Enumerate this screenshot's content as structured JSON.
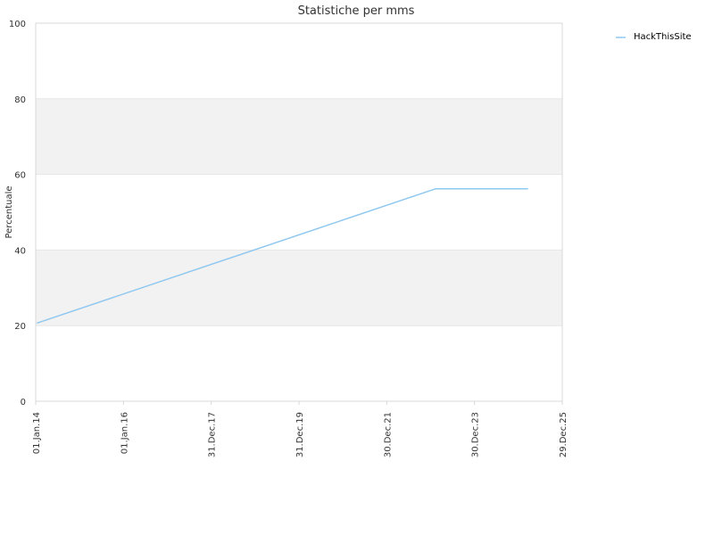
{
  "chart_data": {
    "type": "line",
    "title": "Statistiche per mms",
    "xlabel": "",
    "ylabel": "Percentuale",
    "ylim": [
      0,
      100
    ],
    "yticks": [
      0,
      20,
      40,
      60,
      80,
      100
    ],
    "xlim": [
      "2014-01-01",
      "2025-12-29"
    ],
    "xticks": [
      {
        "date": "2014-01-01",
        "label": "01.Jan.14"
      },
      {
        "date": "2016-01-01",
        "label": "01.Jan.16"
      },
      {
        "date": "2017-12-31",
        "label": "31.Dec.17"
      },
      {
        "date": "2019-12-31",
        "label": "31.Dec.19"
      },
      {
        "date": "2021-12-30",
        "label": "30.Dec.21"
      },
      {
        "date": "2023-12-30",
        "label": "30.Dec.23"
      },
      {
        "date": "2025-12-29",
        "label": "29.Dec.25"
      }
    ],
    "grid": "alternating horizontal bands",
    "legend_position": "top-right",
    "series": [
      {
        "name": "HackThisSite",
        "color": "#90c8f0",
        "points": [
          {
            "x": "2014-01-15",
            "y": 20.7
          },
          {
            "x": "2023-02-10",
            "y": 56.2
          },
          {
            "x": "2025-03-15",
            "y": 56.2
          }
        ]
      }
    ]
  },
  "colors": {
    "band": "#f2f2f2",
    "grid": "#e6e6e6",
    "axis": "#d8d8d8"
  }
}
